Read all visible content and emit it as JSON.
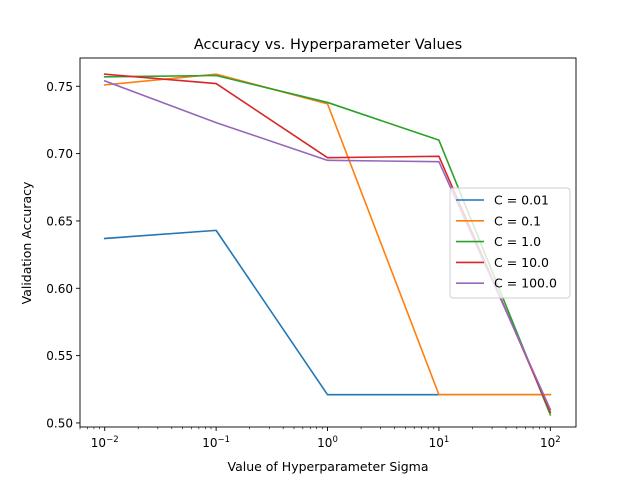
{
  "chart_data": {
    "type": "line",
    "title": "Accuracy vs. Hyperparameter Values",
    "xlabel": "Value of Hyperparameter Sigma",
    "ylabel": "Validation Accuracy",
    "x_scale": "log",
    "x": [
      0.01,
      0.1,
      1,
      10,
      100
    ],
    "x_tick_labels": [
      {
        "base": "10",
        "exp": "−2"
      },
      {
        "base": "10",
        "exp": "−1"
      },
      {
        "base": "10",
        "exp": "0"
      },
      {
        "base": "10",
        "exp": "1"
      },
      {
        "base": "10",
        "exp": "2"
      }
    ],
    "xlim": [
      0.006,
      170
    ],
    "ylim": [
      0.497,
      0.771
    ],
    "y_ticks": [
      0.5,
      0.55,
      0.6,
      0.65,
      0.7,
      0.75
    ],
    "y_tick_labels": [
      "0.50",
      "0.55",
      "0.60",
      "0.65",
      "0.70",
      "0.75"
    ],
    "grid": false,
    "legend_position": "center-right",
    "series": [
      {
        "name": "C = 0.01",
        "color": "#1f77b4",
        "values": [
          0.637,
          0.643,
          0.521,
          0.521,
          0.521
        ]
      },
      {
        "name": "C = 0.1",
        "color": "#ff7f0e",
        "values": [
          0.751,
          0.759,
          0.737,
          0.521,
          0.521
        ]
      },
      {
        "name": "C = 1.0",
        "color": "#2ca02c",
        "values": [
          0.757,
          0.758,
          0.738,
          0.71,
          0.506
        ]
      },
      {
        "name": "C = 10.0",
        "color": "#d62728",
        "values": [
          0.759,
          0.752,
          0.697,
          0.698,
          0.508
        ]
      },
      {
        "name": "C = 100.0",
        "color": "#9467bd",
        "values": [
          0.754,
          0.723,
          0.695,
          0.694,
          0.51
        ]
      }
    ]
  }
}
